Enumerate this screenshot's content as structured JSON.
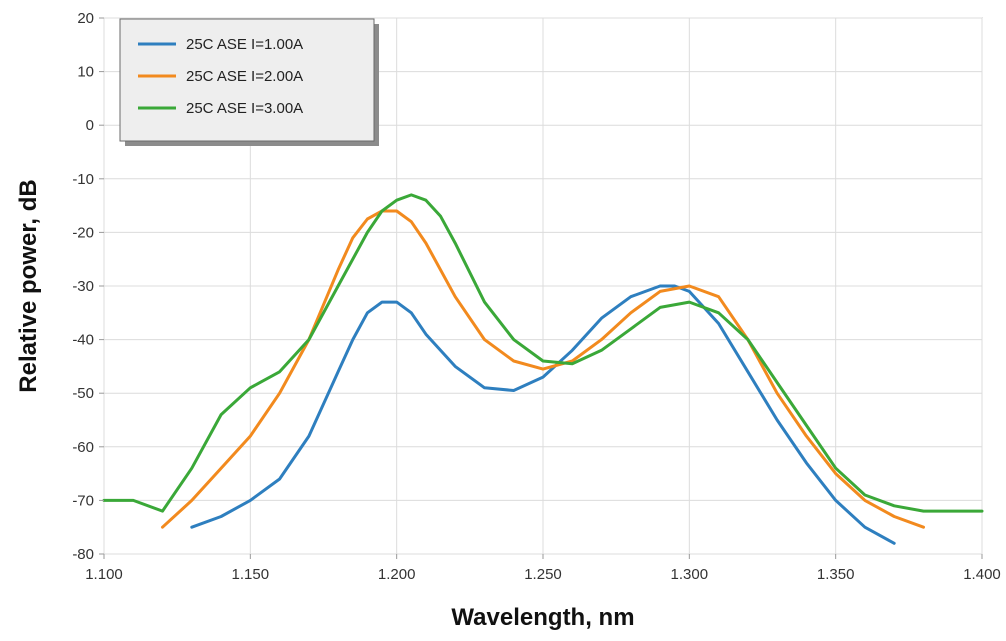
{
  "chart_data": {
    "type": "line",
    "xlabel": "Wavelength, nm",
    "ylabel": "Relative power, dB",
    "xlim": [
      1.1,
      1.4
    ],
    "ylim": [
      -80,
      20
    ],
    "xticks": [
      "1.100",
      "1.150",
      "1.200",
      "1.250",
      "1.300",
      "1.350",
      "1.400"
    ],
    "yticks": [
      "20",
      "10",
      "0",
      "-10",
      "-20",
      "-30",
      "-40",
      "-50",
      "-60",
      "-70",
      "-80"
    ],
    "grid": true,
    "legend_position": "top-left",
    "series": [
      {
        "name": "25C ASE I=1.00A",
        "color": "#2e7fbf",
        "x": [
          1.13,
          1.14,
          1.15,
          1.16,
          1.17,
          1.18,
          1.185,
          1.19,
          1.195,
          1.2,
          1.205,
          1.21,
          1.22,
          1.23,
          1.24,
          1.25,
          1.26,
          1.27,
          1.28,
          1.29,
          1.295,
          1.3,
          1.31,
          1.32,
          1.33,
          1.34,
          1.35,
          1.36,
          1.37
        ],
        "y": [
          -75,
          -73,
          -70,
          -66,
          -58,
          -46,
          -40,
          -35,
          -33,
          -33,
          -35,
          -39,
          -45,
          -49,
          -49.5,
          -47,
          -42,
          -36,
          -32,
          -30,
          -30,
          -31,
          -37,
          -46,
          -55,
          -63,
          -70,
          -75,
          -78
        ]
      },
      {
        "name": "25C ASE I=2.00A",
        "color": "#f28a1e",
        "x": [
          1.12,
          1.13,
          1.14,
          1.15,
          1.16,
          1.17,
          1.18,
          1.185,
          1.19,
          1.195,
          1.2,
          1.205,
          1.21,
          1.22,
          1.23,
          1.24,
          1.25,
          1.26,
          1.27,
          1.28,
          1.29,
          1.3,
          1.31,
          1.32,
          1.33,
          1.34,
          1.35,
          1.36,
          1.37,
          1.38
        ],
        "y": [
          -75,
          -70,
          -64,
          -58,
          -50,
          -40,
          -27,
          -21,
          -17.5,
          -16,
          -16,
          -18,
          -22,
          -32,
          -40,
          -44,
          -45.5,
          -44,
          -40,
          -35,
          -31,
          -30,
          -32,
          -40,
          -50,
          -58,
          -65,
          -70,
          -73,
          -75
        ]
      },
      {
        "name": "25C ASE I=3.00A",
        "color": "#3aa838",
        "x": [
          1.1,
          1.11,
          1.12,
          1.13,
          1.14,
          1.15,
          1.16,
          1.17,
          1.18,
          1.19,
          1.195,
          1.2,
          1.205,
          1.21,
          1.215,
          1.22,
          1.23,
          1.24,
          1.25,
          1.26,
          1.27,
          1.28,
          1.29,
          1.3,
          1.31,
          1.32,
          1.33,
          1.34,
          1.35,
          1.36,
          1.37,
          1.38,
          1.39,
          1.4
        ],
        "y": [
          -70,
          -70,
          -72,
          -64,
          -54,
          -49,
          -46,
          -40,
          -30,
          -20,
          -16,
          -14,
          -13,
          -14,
          -17,
          -22,
          -33,
          -40,
          -44,
          -44.5,
          -42,
          -38,
          -34,
          -33,
          -35,
          -40,
          -48,
          -56,
          -64,
          -69,
          -71,
          -72,
          -72,
          -72
        ]
      }
    ]
  }
}
